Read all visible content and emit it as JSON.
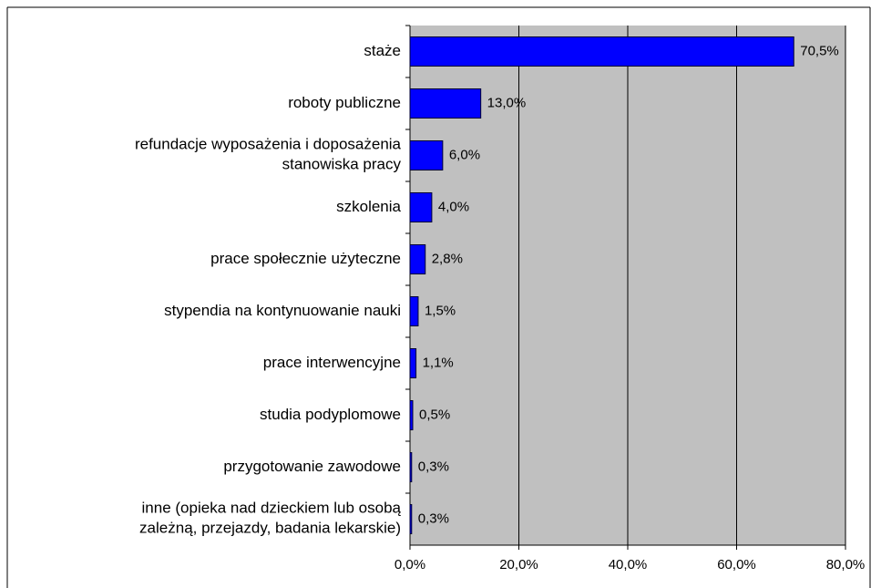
{
  "chart_data": {
    "type": "bar",
    "orientation": "horizontal",
    "categories": [
      "staże",
      "roboty publiczne",
      "refundacje wyposażenia i doposażenia\nstanowiska pracy",
      "szkolenia",
      "prace społecznie użyteczne",
      "stypendia na kontynuowanie nauki",
      "prace interwencyjne",
      "studia podyplomowe",
      "przygotowanie zawodowe",
      "inne (opieka nad dzieckiem lub osobą\nzależną, przejazdy, badania lekarskie)"
    ],
    "values": [
      70.5,
      13.0,
      6.0,
      4.0,
      2.8,
      1.5,
      1.1,
      0.5,
      0.3,
      0.3
    ],
    "value_labels": [
      "70,5%",
      "13,0%",
      "6,0%",
      "4,0%",
      "2,8%",
      "1,5%",
      "1,1%",
      "0,5%",
      "0,3%",
      "0,3%"
    ],
    "color": "#0000ff",
    "xlim": [
      0,
      80
    ],
    "xticks": [
      {
        "value": 0,
        "label": "0,0%"
      },
      {
        "value": 20,
        "label": "20,0%"
      },
      {
        "value": 40,
        "label": "40,0%"
      },
      {
        "value": 60,
        "label": "60,0%"
      },
      {
        "value": 80,
        "label": "80,0%"
      }
    ],
    "grid": true
  }
}
